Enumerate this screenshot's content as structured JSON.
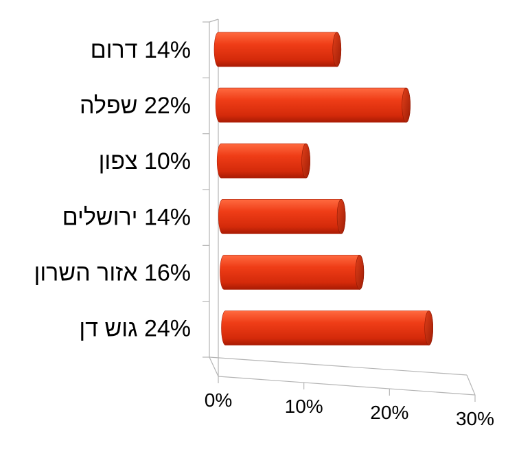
{
  "chart_data": {
    "type": "bar",
    "orientation": "horizontal",
    "style": "3d-cylinder",
    "categories": [
      "דרום",
      "שפלה",
      "צפון",
      "ירושלים",
      "אזור השרון",
      "גוש דן"
    ],
    "category_labels": [
      "14% דרום",
      "22% שפלה",
      "10% צפון",
      "14% ירושלים",
      "16% אזור השרון",
      "24% גוש דן"
    ],
    "values": [
      14,
      22,
      10,
      14,
      16,
      24
    ],
    "value_unit": "%",
    "xlim": [
      0,
      30
    ],
    "xticks": [
      "0%",
      "10%",
      "20%",
      "30%"
    ],
    "grid": true,
    "legend": "none",
    "bar_color": "#e83a14"
  }
}
